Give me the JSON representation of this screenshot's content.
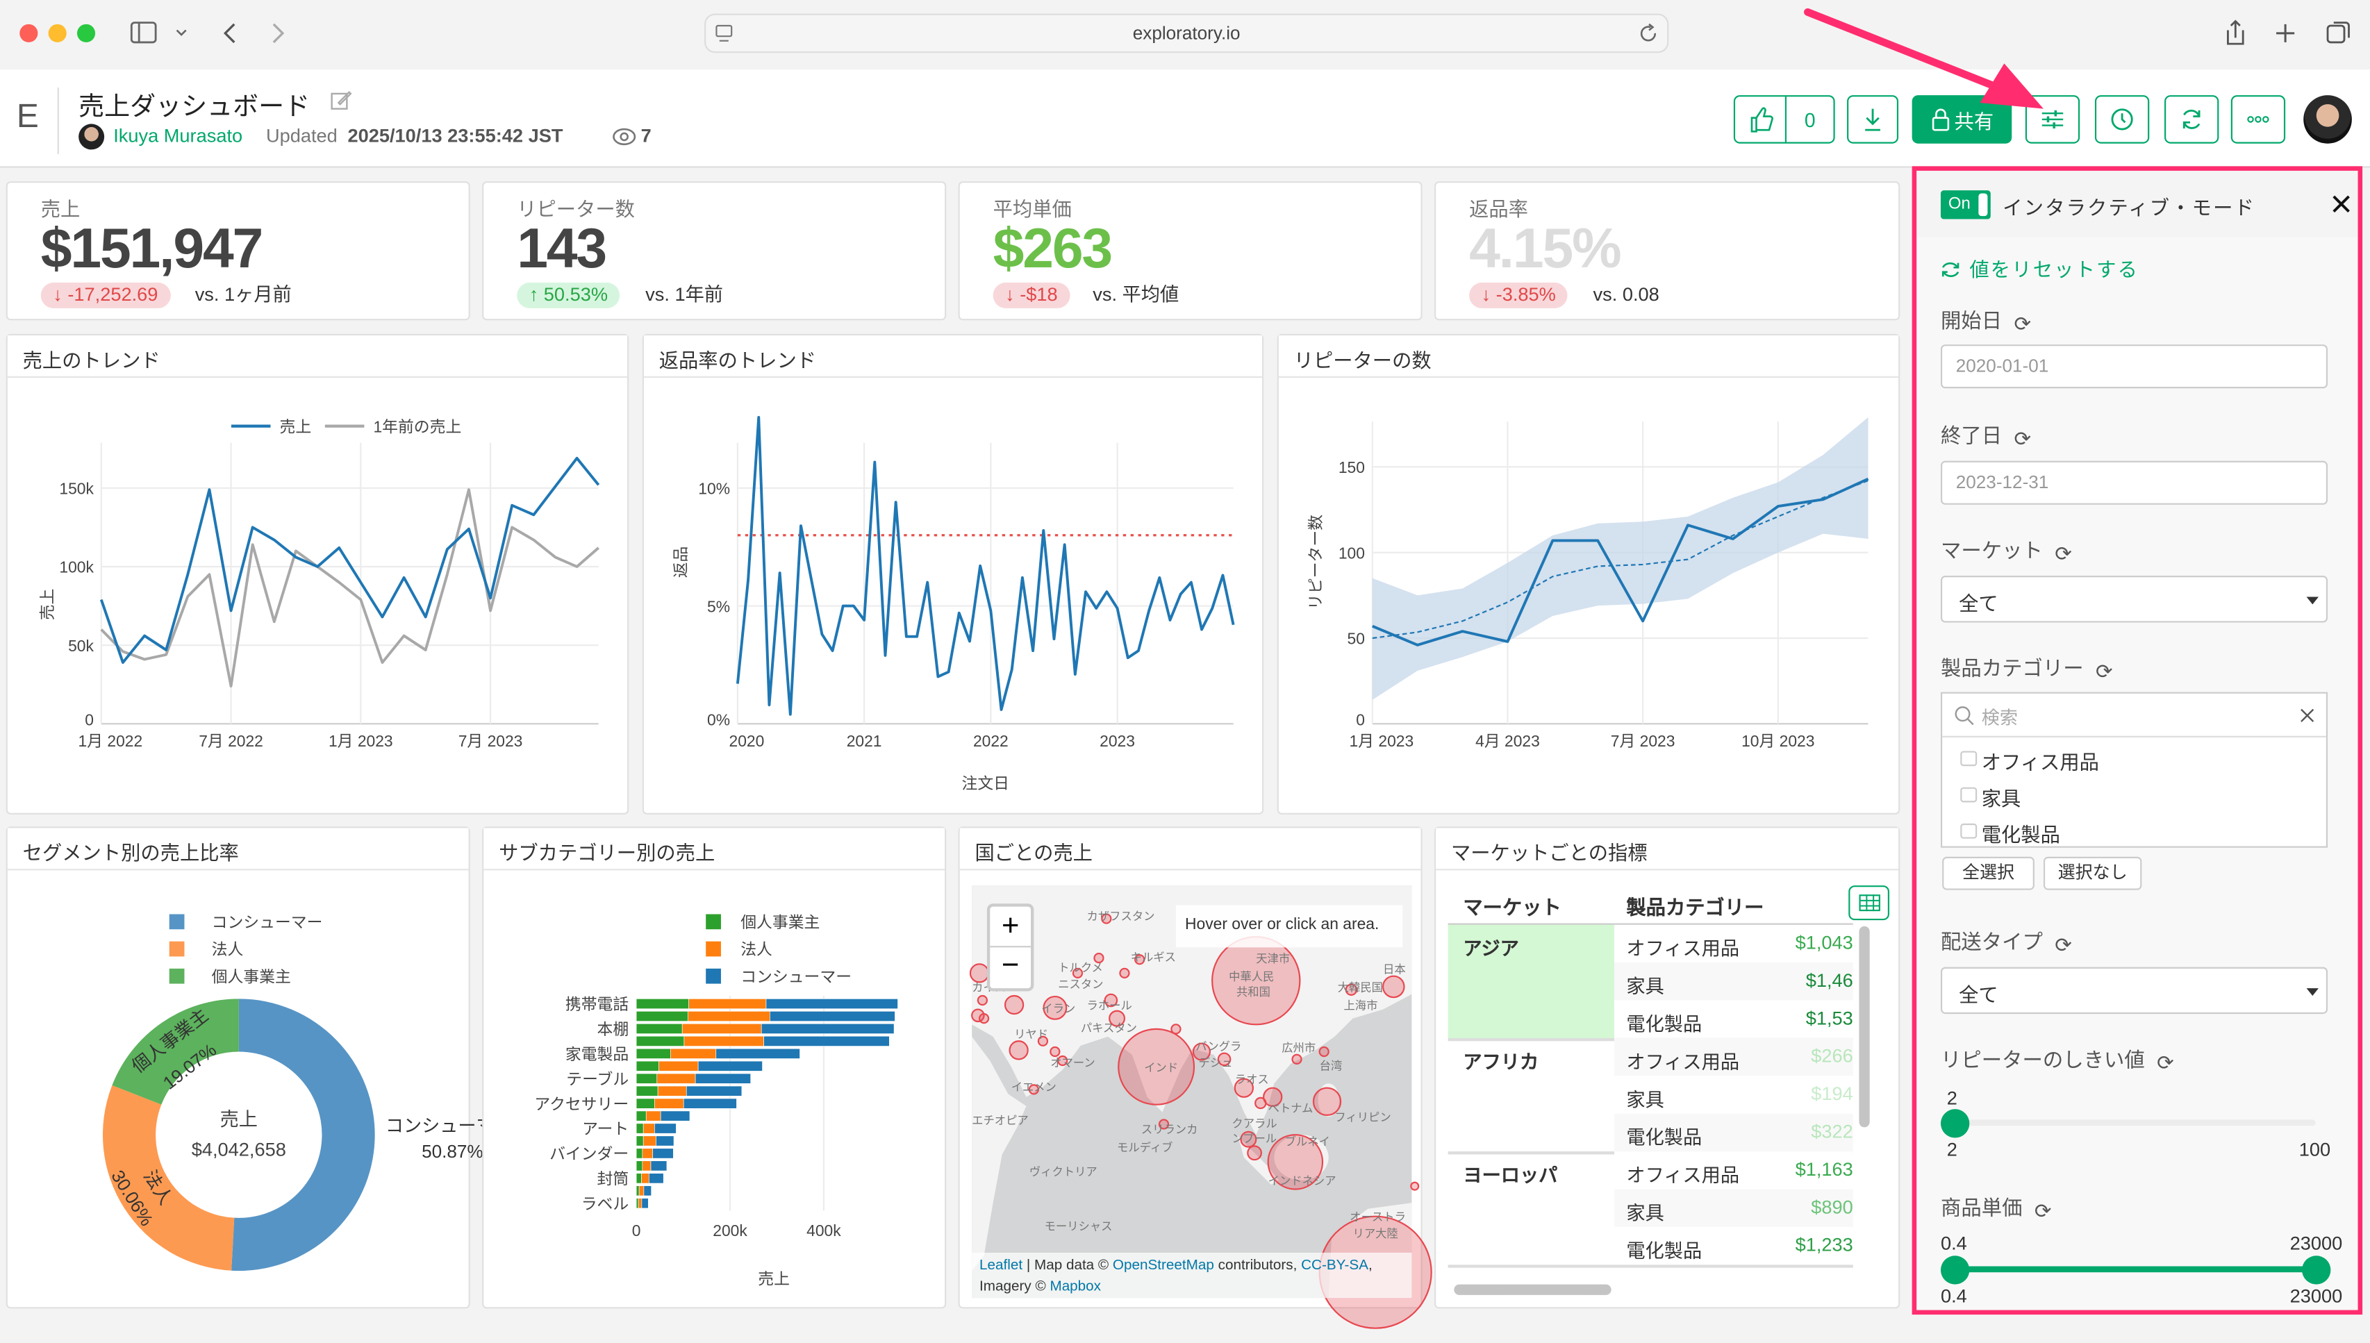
{
  "browser": {
    "url": "exploratory.io"
  },
  "header": {
    "logo": "E",
    "title": "売上ダッシュボード",
    "author": "Ikuya Murasato",
    "updated_label": "Updated",
    "updated_at": "2025/10/13 23:55:42 JST",
    "view_count": "7",
    "like_count": "0",
    "share_label": "共有",
    "accent": "#00a86b"
  },
  "kpis": [
    {
      "label": "売上",
      "value": "$151,947",
      "delta": "-17,252.69",
      "direction": "down",
      "compare": "vs. 1ヶ月前",
      "value_color": "#444444"
    },
    {
      "label": "リピーター数",
      "value": "143",
      "delta": "50.53%",
      "direction": "up",
      "compare": "vs. 1年前",
      "value_color": "#444444"
    },
    {
      "label": "平均単価",
      "value": "$263",
      "delta": "-$18",
      "direction": "down",
      "compare": "vs. 平均値",
      "value_color": "#6cc04a"
    },
    {
      "label": "返品率",
      "value": "4.15%",
      "delta": "-3.85%",
      "direction": "down",
      "compare": "vs. 0.08",
      "value_color": "#dcdcdc"
    }
  ],
  "cards": {
    "sales_trend": "売上のトレンド",
    "return_trend": "返品率のトレンド",
    "repeaters": "リピーターの数",
    "segment": "セグメント別の売上比率",
    "subcategory": "サブカテゴリー別の売上",
    "country": "国ごとの売上",
    "market": "マーケットごとの指標"
  },
  "chart_data": [
    {
      "type": "line",
      "ylabel": "売上",
      "legend": "top",
      "grid": true,
      "ylim": [
        0,
        170000
      ],
      "y_ticks": [
        "0",
        "50k",
        "100k",
        "150k"
      ],
      "x_ticks": [
        "1月 2022",
        "7月 2022",
        "1月 2023",
        "7月 2023"
      ],
      "x": [
        "2022-01",
        "2022-02",
        "2022-03",
        "2022-04",
        "2022-05",
        "2022-06",
        "2022-07",
        "2022-08",
        "2022-09",
        "2022-10",
        "2022-11",
        "2022-12",
        "2023-01",
        "2023-02",
        "2023-03",
        "2023-04",
        "2023-05",
        "2023-06",
        "2023-07",
        "2023-08",
        "2023-09",
        "2023-10",
        "2023-11",
        "2023-12"
      ],
      "series": [
        {
          "name": "売上",
          "color": "#1f77b4",
          "values": [
            79000,
            39000,
            56000,
            47000,
            95000,
            149000,
            72000,
            125000,
            117000,
            106000,
            100000,
            112000,
            90000,
            68000,
            93000,
            68000,
            111000,
            124000,
            80000,
            139000,
            133000,
            151000,
            169000,
            152000
          ]
        },
        {
          "name": "1年前の売上",
          "color": "#a8a8a8",
          "values": [
            60000,
            46000,
            41000,
            44000,
            81000,
            95000,
            24000,
            114000,
            65000,
            110000,
            100000,
            90000,
            79000,
            39000,
            56000,
            47000,
            95000,
            149000,
            72000,
            125000,
            117000,
            106000,
            100000,
            112000
          ]
        }
      ]
    },
    {
      "type": "line",
      "xlabel": "注文日",
      "ylabel": "返品",
      "grid": true,
      "ylim": [
        0,
        13
      ],
      "y_ticks": [
        "0%",
        "5%",
        "10%"
      ],
      "x_ticks": [
        "2020",
        "2021",
        "2022",
        "2023"
      ],
      "reference_line": {
        "value": 8.0,
        "color": "#e8514a",
        "style": "dotted"
      },
      "x": [
        "2020-01",
        "2020-02",
        "2020-03",
        "2020-04",
        "2020-05",
        "2020-06",
        "2020-07",
        "2020-08",
        "2020-09",
        "2020-10",
        "2020-11",
        "2020-12",
        "2021-01",
        "2021-02",
        "2021-03",
        "2021-04",
        "2021-05",
        "2021-06",
        "2021-07",
        "2021-08",
        "2021-09",
        "2021-10",
        "2021-11",
        "2021-12",
        "2022-01",
        "2022-02",
        "2022-03",
        "2022-04",
        "2022-05",
        "2022-06",
        "2022-07",
        "2022-08",
        "2022-09",
        "2022-10",
        "2022-11",
        "2022-12",
        "2023-01",
        "2023-02",
        "2023-03",
        "2023-04",
        "2023-05",
        "2023-06",
        "2023-07",
        "2023-08",
        "2023-09",
        "2023-10",
        "2023-11",
        "2023-12"
      ],
      "series": [
        {
          "color": "#1f77b4",
          "values": [
            1.7,
            6.1,
            13.0,
            0.8,
            6.4,
            0.4,
            8.4,
            6.1,
            3.8,
            3.1,
            5.0,
            5.0,
            4.4,
            11.1,
            2.9,
            9.4,
            3.7,
            3.7,
            6.0,
            2.0,
            2.2,
            4.7,
            3.5,
            6.7,
            4.8,
            0.6,
            2.3,
            6.2,
            3.1,
            8.2,
            3.6,
            7.6,
            2.1,
            5.6,
            4.9,
            5.6,
            4.9,
            2.8,
            3.1,
            4.8,
            6.2,
            4.4,
            5.5,
            6.0,
            4.0,
            4.9,
            6.3,
            4.2
          ]
        }
      ]
    },
    {
      "type": "line",
      "ylabel": "リピーター数",
      "grid": true,
      "ylim": [
        0,
        180
      ],
      "y_ticks": [
        "0",
        "50",
        "100",
        "150"
      ],
      "x_ticks": [
        "1月 2023",
        "4月 2023",
        "7月 2023",
        "10月 2023"
      ],
      "x": [
        "2023-01",
        "2023-02",
        "2023-03",
        "2023-04",
        "2023-05",
        "2023-06",
        "2023-07",
        "2023-08",
        "2023-09",
        "2023-10",
        "2023-11",
        "2023-12"
      ],
      "series": [
        {
          "color": "#1f77b4",
          "values": [
            57,
            46,
            54,
            48,
            107,
            107,
            60,
            116,
            108,
            127,
            131,
            143
          ]
        }
      ],
      "trend": {
        "color": "#1f77b4",
        "style": "dashed",
        "values": [
          50,
          53.5,
          60,
          71,
          86,
          92,
          93,
          96,
          110,
          121,
          132,
          142
        ]
      },
      "band": {
        "color": "#c6d7ea",
        "upper": [
          85,
          75,
          79,
          94,
          110,
          117,
          118,
          121,
          132,
          141,
          157,
          179
        ],
        "lower": [
          14,
          31,
          39,
          48,
          63,
          69,
          70,
          73,
          88,
          100,
          111,
          108
        ]
      }
    },
    {
      "type": "pie",
      "hole": true,
      "legend": "top",
      "center_label": "売上",
      "center_value": "$4,042,658",
      "slices": [
        {
          "name": "コンシューマー",
          "percent": 50.87,
          "label": "50.87%",
          "color": "#5694c5"
        },
        {
          "name": "法人",
          "percent": 30.06,
          "label": "30.06%",
          "color": "#fd9a51"
        },
        {
          "name": "個人事業主",
          "percent": 19.07,
          "label": "19.07%",
          "color": "#5cb25d"
        }
      ]
    },
    {
      "type": "bar",
      "orientation": "horizontal",
      "stacked": true,
      "xlabel": "売上",
      "legend": "top",
      "grid": true,
      "xlim": [
        0,
        560000
      ],
      "x_ticks": [
        "0",
        "200k",
        "400k"
      ],
      "categories": [
        "携帯電話",
        "",
        "本棚",
        "",
        "家電製品",
        "",
        "テーブル",
        "",
        "アクセサリー",
        "",
        "アート",
        "",
        "バインダー",
        "",
        "封筒",
        "",
        "ラベル"
      ],
      "series": [
        {
          "name": "個人事業主",
          "color": "#2ca02c",
          "values": [
            112000,
            110000,
            98000,
            102000,
            73000,
            48000,
            44000,
            46000,
            39000,
            21000,
            15000,
            15000,
            13000,
            13000,
            11000,
            6000,
            4500
          ]
        },
        {
          "name": "法人",
          "color": "#ff7f0e",
          "values": [
            165000,
            175000,
            169000,
            170000,
            97000,
            84000,
            82000,
            61000,
            62000,
            31000,
            24000,
            27000,
            22000,
            18000,
            16000,
            10000,
            7000
          ]
        },
        {
          "name": "コンシューマー",
          "color": "#1f77b4",
          "values": [
            281000,
            267000,
            283000,
            268000,
            179000,
            137000,
            118000,
            118000,
            113000,
            62000,
            46000,
            38000,
            44000,
            34000,
            31000,
            16000,
            14000
          ]
        }
      ]
    }
  ],
  "map": {
    "hover_hint": "Hover over or click an area.",
    "zoom_in": "+",
    "zoom_out": "−",
    "attribution": {
      "leaflet": "Leaflet",
      "sep": " | Map data © ",
      "osm": "OpenStreetMap",
      "contrib": " contributors, ",
      "license": "CC-BY-SA",
      "imagery": ", Imagery © ",
      "mapbox": "Mapbox"
    },
    "bubble_color": "#e8474f",
    "labels": [
      "カザフスタン",
      "キルギス",
      "トルクメ",
      "ニスタン",
      "イラン",
      "ラホール",
      "パキスタン",
      "インド",
      "中華人民",
      "共和国",
      "天津市",
      "大韓民国",
      "日本",
      "上海市",
      "広州市",
      "台湾",
      "バングラ",
      "デシュ",
      "ラオス",
      "ベトナム",
      "フィリピン",
      "クアラル",
      "ンプール",
      "ブルネイ",
      "インドネシア",
      "スリランカ",
      "モルディブ",
      "リヤド",
      "オマーン",
      "イエメン",
      "エチオピア",
      "ヴィクトリア",
      "モーリシャス",
      "オーストラ",
      "リア大陸",
      "カイロ"
    ]
  },
  "market_table": {
    "columns": [
      "マーケット",
      "製品カテゴリー"
    ],
    "groups": [
      {
        "market": "アジア",
        "highlight": "#d4f8d4",
        "rows": [
          {
            "category": "オフィス用品",
            "value": "$1,043",
            "color": "#3aaa50"
          },
          {
            "category": "家具",
            "value": "$1,46",
            "color": "#1a8a3a"
          },
          {
            "category": "電化製品",
            "value": "$1,53",
            "color": "#1a8a3a"
          }
        ]
      },
      {
        "market": "アフリカ",
        "rows": [
          {
            "category": "オフィス用品",
            "value": "$266",
            "color": "#b8e6bb"
          },
          {
            "category": "家具",
            "value": "$194",
            "color": "#c8eccb"
          },
          {
            "category": "電化製品",
            "value": "$322",
            "color": "#b8e6bb"
          }
        ]
      },
      {
        "market": "ヨーロッパ",
        "rows": [
          {
            "category": "オフィス用品",
            "value": "$1,163",
            "color": "#3aaa50"
          },
          {
            "category": "家具",
            "value": "$890",
            "color": "#6cc47a"
          },
          {
            "category": "電化製品",
            "value": "$1,233",
            "color": "#2f9f48"
          }
        ]
      }
    ]
  },
  "panel": {
    "toggle": "On",
    "title": "インタラクティブ・モード",
    "reset": "値をリセットする",
    "start_label": "開始日",
    "start_value": "2020-01-01",
    "end_label": "終了日",
    "end_value": "2023-12-31",
    "market_label": "マーケット",
    "market_value": "全て",
    "category_label": "製品カテゴリー",
    "search_placeholder": "検索",
    "categories": [
      "オフィス用品",
      "家具",
      "電化製品"
    ],
    "select_all": "全選択",
    "select_none": "選択なし",
    "ship_label": "配送タイプ",
    "ship_value": "全て",
    "repeater_label": "リピーターのしきい値",
    "repeater": {
      "value": "2",
      "min": "2",
      "max": "100"
    },
    "price_label": "商品単価",
    "price": {
      "low": "0.4",
      "high": "23000",
      "min": "0.4",
      "max": "23000"
    },
    "highlight_color": "#ff2d6f"
  }
}
